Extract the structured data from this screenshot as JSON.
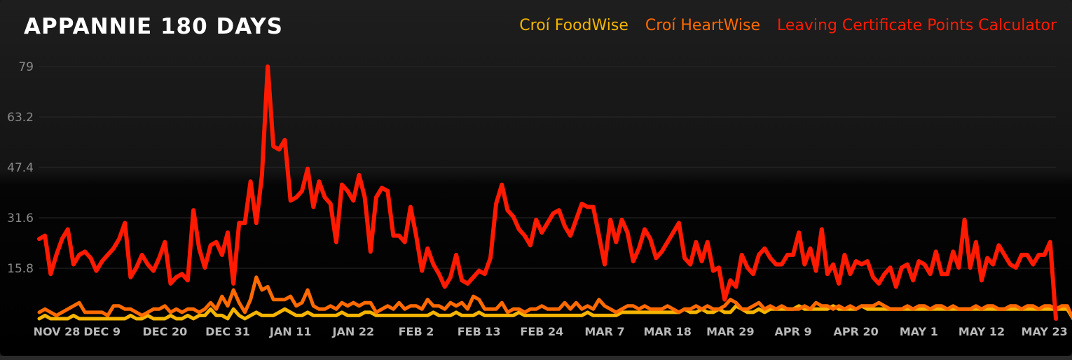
{
  "header": {
    "title": "APPANNIE 180 DAYS"
  },
  "colors": {
    "foodwise": "#f5b400",
    "heartwise": "#ff6a00",
    "leaving": "#ff1a00",
    "grid": "#2a2a2a"
  },
  "chart_data": {
    "type": "line",
    "title": "APPANNIE 180 DAYS",
    "xlabel": "",
    "ylabel": "",
    "ylim": [
      0,
      79
    ],
    "yticks": [
      "15.8",
      "31.6",
      "47.4",
      "63.2",
      "79"
    ],
    "grid": true,
    "legend_position": "top-right",
    "x_tick_labels": [
      "NOV 28",
      "DEC 9",
      "DEC 20",
      "DEC 31",
      "JAN 11",
      "JAN 22",
      "FEB 2",
      "FEB 13",
      "FEB 24",
      "MAR 7",
      "MAR 18",
      "MAR 29",
      "APR 9",
      "APR 20",
      "MAY 1",
      "MAY 12",
      "MAY 23"
    ],
    "series": [
      {
        "name": "Croí FoodWise",
        "values": [
          0,
          1,
          0,
          0,
          0,
          0,
          1,
          0,
          0,
          0,
          0,
          0,
          0,
          0,
          0,
          0,
          1,
          0,
          0,
          1,
          0,
          0,
          0,
          1,
          0,
          0,
          1,
          0,
          1,
          1,
          3,
          1,
          1,
          0,
          3,
          1,
          0,
          1,
          2,
          1,
          1,
          1,
          2,
          3,
          2,
          1,
          1,
          2,
          1,
          1,
          1,
          1,
          1,
          2,
          1,
          1,
          1,
          2,
          2,
          1,
          1,
          1,
          1,
          1,
          1,
          1,
          1,
          1,
          1,
          2,
          1,
          1,
          1,
          2,
          1,
          1,
          1,
          2,
          1,
          1,
          1,
          1,
          1,
          1,
          2,
          1,
          1,
          1,
          1,
          1,
          1,
          1,
          1,
          1,
          1,
          1,
          2,
          1,
          1,
          1,
          1,
          1,
          2,
          2,
          2,
          2,
          2,
          2,
          2,
          2,
          2,
          2,
          2,
          3,
          2,
          2,
          3,
          2,
          2,
          3,
          2,
          2,
          4,
          3,
          2,
          2,
          3,
          2,
          3,
          3,
          3,
          3,
          3,
          4,
          3,
          3,
          3,
          3,
          3,
          4,
          3,
          3,
          3,
          3,
          4,
          3,
          3,
          3,
          3,
          3,
          3,
          3,
          3,
          3,
          3,
          3,
          3,
          3,
          3,
          3,
          3,
          3,
          3,
          3,
          3,
          3,
          3,
          3,
          3,
          3,
          3,
          3,
          3,
          3,
          3,
          3,
          3,
          3,
          3,
          3,
          3,
          0
        ]
      },
      {
        "name": "Croí HeartWise",
        "values": [
          2,
          3,
          2,
          1,
          2,
          3,
          4,
          5,
          2,
          2,
          2,
          2,
          1,
          4,
          4,
          3,
          3,
          2,
          1,
          2,
          3,
          3,
          4,
          2,
          3,
          2,
          3,
          3,
          2,
          3,
          5,
          3,
          7,
          4,
          9,
          5,
          2,
          6,
          13,
          9,
          10,
          6,
          6,
          6,
          7,
          4,
          5,
          9,
          4,
          3,
          3,
          4,
          3,
          5,
          4,
          5,
          4,
          5,
          5,
          2,
          3,
          4,
          3,
          5,
          3,
          4,
          4,
          3,
          6,
          4,
          4,
          3,
          5,
          4,
          5,
          3,
          7,
          6,
          3,
          3,
          3,
          5,
          2,
          3,
          3,
          2,
          3,
          3,
          4,
          3,
          3,
          3,
          5,
          3,
          5,
          3,
          4,
          3,
          6,
          4,
          3,
          2,
          3,
          4,
          4,
          3,
          4,
          3,
          3,
          3,
          4,
          3,
          2,
          3,
          3,
          4,
          3,
          4,
          3,
          3,
          4,
          6,
          5,
          3,
          3,
          4,
          5,
          3,
          4,
          3,
          4,
          3,
          3,
          3,
          4,
          3,
          5,
          4,
          4,
          3,
          4,
          3,
          4,
          3,
          4,
          4,
          4,
          5,
          4,
          3,
          3,
          3,
          4,
          3,
          4,
          4,
          3,
          4,
          4,
          3,
          4,
          3,
          3,
          3,
          4,
          3,
          4,
          4,
          3,
          3,
          4,
          4,
          3,
          4,
          4,
          3,
          4,
          4,
          3,
          4,
          4,
          0
        ]
      },
      {
        "name": "Leaving Certificate Points Calculator",
        "values": [
          25,
          26,
          14,
          20,
          25,
          28,
          17,
          20,
          21,
          19,
          15,
          18,
          20,
          22,
          25,
          30,
          13,
          16,
          20,
          17,
          15,
          19,
          24,
          11,
          13,
          14,
          12,
          34,
          22,
          16,
          23,
          24,
          20,
          27,
          11,
          30,
          30,
          43,
          30,
          45,
          79,
          54,
          53,
          56,
          37,
          38,
          40,
          47,
          35,
          43,
          38,
          36,
          24,
          42,
          40,
          37,
          45,
          38,
          21,
          38,
          41,
          40,
          26,
          26,
          24,
          35,
          26,
          15,
          22,
          17,
          14,
          10,
          13,
          20,
          12,
          11,
          13,
          15,
          14,
          19,
          36,
          42,
          34,
          32,
          28,
          26,
          23,
          31,
          27,
          30,
          33,
          34,
          29,
          26,
          31,
          36,
          35,
          35,
          26,
          17,
          31,
          24,
          31,
          27,
          18,
          22,
          28,
          25,
          19,
          21,
          24,
          27,
          30,
          19,
          17,
          24,
          18,
          24,
          15,
          16,
          6,
          12,
          10,
          20,
          16,
          14,
          20,
          22,
          19,
          17,
          17,
          20,
          20,
          27,
          17,
          22,
          15,
          28,
          14,
          17,
          11,
          20,
          14,
          18,
          17,
          18,
          13,
          11,
          14,
          16,
          10,
          16,
          17,
          12,
          18,
          17,
          14,
          21,
          14,
          14,
          21,
          16,
          31,
          16,
          24,
          12,
          19,
          17,
          23,
          20,
          17,
          16,
          20,
          20,
          17,
          20,
          20,
          24,
          0
        ]
      }
    ]
  }
}
